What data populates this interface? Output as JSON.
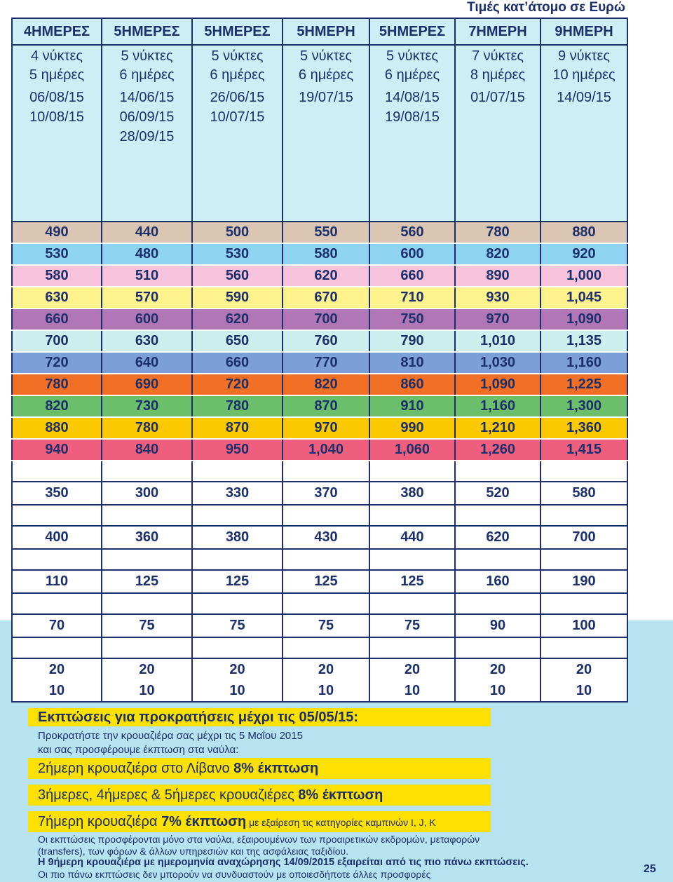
{
  "caption": "Τιμές κατ’άτομο σε Ευρώ",
  "columns": [
    {
      "title": "4ΗΜΕΡΕΣ",
      "nights": "4 νύκτες",
      "days": "5 ημέρες",
      "dates": [
        "06/08/15",
        "10/08/15",
        ""
      ]
    },
    {
      "title": "5ΗΜΕΡΕΣ",
      "nights": "5 νύκτες",
      "days": "6 ημέρες",
      "dates": [
        "14/06/15",
        "06/09/15",
        "28/09/15"
      ]
    },
    {
      "title": "5ΗΜΕΡΕΣ",
      "nights": "5 νύκτες",
      "days": "6 ημέρες",
      "dates": [
        "26/06/15",
        "10/07/15",
        ""
      ]
    },
    {
      "title": "5ΗΜΕΡΗ",
      "nights": "5 νύκτες",
      "days": "6 ημέρες",
      "dates": [
        "19/07/15",
        "",
        ""
      ]
    },
    {
      "title": "5ΗΜΕΡΕΣ",
      "nights": "5 νύκτες",
      "days": "6 ημέρες",
      "dates": [
        "14/08/15",
        "19/08/15",
        ""
      ]
    },
    {
      "title": "7ΗΜΕΡΗ",
      "nights": "7 νύκτες",
      "days": "8 ημέρες",
      "dates": [
        "01/07/15",
        "",
        ""
      ]
    },
    {
      "title": "9ΗΜΕΡΗ",
      "nights": "9 νύκτες",
      "days": "10 ημέρες",
      "dates": [
        "14/09/15",
        "",
        ""
      ]
    }
  ],
  "price_rows": [
    {
      "color": "#dbc6b4",
      "values": [
        "490",
        "440",
        "500",
        "550",
        "560",
        "780",
        "880"
      ]
    },
    {
      "color": "#8fd3f2",
      "values": [
        "530",
        "480",
        "530",
        "580",
        "600",
        "820",
        "920"
      ]
    },
    {
      "color": "#f7c2dc",
      "values": [
        "580",
        "510",
        "560",
        "620",
        "660",
        "890",
        "1,000"
      ]
    },
    {
      "color": "#fdf28c",
      "values": [
        "630",
        "570",
        "590",
        "670",
        "710",
        "930",
        "1,045"
      ]
    },
    {
      "color": "#b176b6",
      "values": [
        "660",
        "600",
        "620",
        "700",
        "750",
        "970",
        "1,090"
      ]
    },
    {
      "color": "#cdeeed",
      "values": [
        "700",
        "630",
        "650",
        "760",
        "790",
        "1,010",
        "1,135"
      ]
    },
    {
      "color": "#7d9fd8",
      "values": [
        "720",
        "640",
        "660",
        "770",
        "810",
        "1,030",
        "1,160"
      ]
    },
    {
      "color": "#f27025",
      "values": [
        "780",
        "690",
        "720",
        "820",
        "860",
        "1,090",
        "1,225"
      ]
    },
    {
      "color": "#6cbf6a",
      "values": [
        "820",
        "730",
        "780",
        "870",
        "910",
        "1,160",
        "1,300"
      ]
    },
    {
      "color": "#fcc800",
      "values": [
        "880",
        "780",
        "870",
        "970",
        "990",
        "1,210",
        "1,360"
      ]
    },
    {
      "color": "#ef5f7d",
      "values": [
        "940",
        "840",
        "950",
        "1,040",
        "1,060",
        "1,260",
        "1,415"
      ]
    }
  ],
  "extra_rows": [
    [
      "350",
      "300",
      "330",
      "370",
      "380",
      "520",
      "580"
    ],
    [
      "400",
      "360",
      "380",
      "430",
      "440",
      "620",
      "700"
    ],
    [
      "110",
      "125",
      "125",
      "125",
      "125",
      "160",
      "190"
    ],
    [
      "70",
      "75",
      "75",
      "75",
      "75",
      "90",
      "100"
    ]
  ],
  "last_rows": [
    [
      "20",
      "20",
      "20",
      "20",
      "20",
      "20",
      "20"
    ],
    [
      "10",
      "10",
      "10",
      "10",
      "10",
      "10",
      "10"
    ]
  ],
  "discounts": {
    "title": "Εκπτώσεις για προκρατήσεις μέχρι τις 05/05/15:",
    "line1": "Προκρατήστε την κρουαζιέρα σας μέχρι τις 5 Μαΐου 2015",
    "line2": "και σας προσφέρουμε έκπτωση στα ναύλα:",
    "offer1_text": "2ήμερη κρουαζιέρα στο Λίβανο ",
    "offer1_bold": "8% έκπτωση",
    "offer2_text": "3ήμερες, 4ήμερες & 5ήμερες κρουαζιέρες ",
    "offer2_bold": "8% έκπτωση",
    "offer3_text": "7ήμερη κρουαζιέρα ",
    "offer3_bold": "7% έκπτωση",
    "offer3_small": " με εξαίρεση τις κατηγορίες καμπινών I, J, K"
  },
  "footer": {
    "note1": "Οι εκπτώσεις προσφέρονται μόνο στα ναύλα, εξαιρουμένων των προαιρετικών εκδρομών, μεταφορών",
    "note2": "(transfers), των φόρων & άλλων υπηρεσιών και της ασφάλειας ταξιδίου.",
    "note3": "Η 9ήμερη κρουαζιέρα με ημερομηνία αναχώρησης 14/09/2015 εξαιρείται από τις πιο πάνω εκπτώσεις.",
    "note4": "Οι πιο πάνω εκπτώσεις δεν μπορούν να συνδυαστούν με οποιεσδήποτε άλλες προσφορές"
  },
  "page_number": "25"
}
